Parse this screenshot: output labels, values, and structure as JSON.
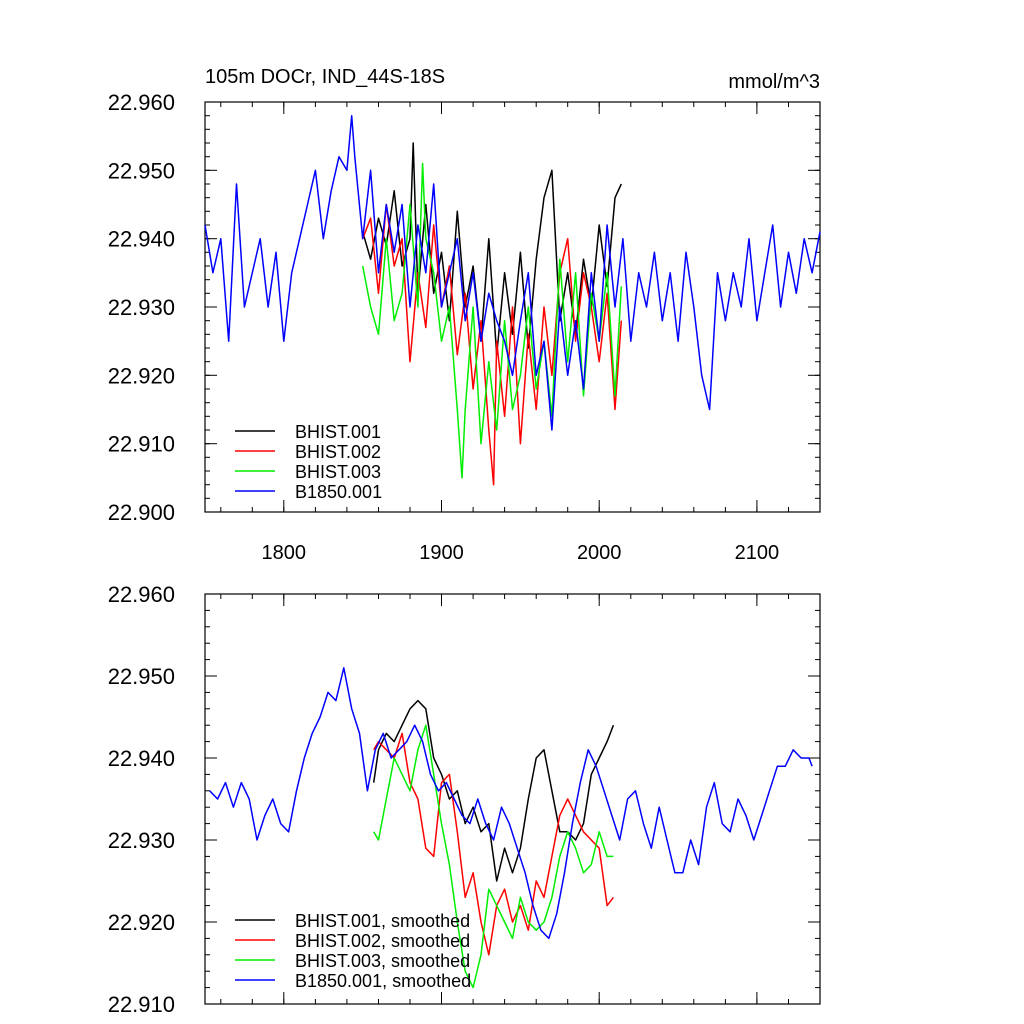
{
  "chart_data": [
    {
      "type": "line",
      "title": "105m DOCr, IND_44S-18S",
      "units": "mmol/m^3",
      "xlim": [
        1750,
        2140
      ],
      "ylim": [
        22.9,
        22.96
      ],
      "x_ticks": [
        1800,
        1900,
        2000,
        2100
      ],
      "x_tick_labels": [
        "1800",
        "1900",
        "2000",
        "2100"
      ],
      "y_ticks": [
        22.9,
        22.91,
        22.92,
        22.93,
        22.94,
        22.95,
        22.96
      ],
      "y_tick_labels": [
        "22.900",
        "22.910",
        "22.920",
        "22.930",
        "22.940",
        "22.950",
        "22.960"
      ],
      "legend": "bottom-left",
      "series": [
        {
          "name": "BHIST.001",
          "color": "#000000",
          "x": [
            1850,
            1855,
            1860,
            1865,
            1870,
            1875,
            1880,
            1882,
            1885,
            1890,
            1895,
            1900,
            1905,
            1910,
            1915,
            1920,
            1925,
            1930,
            1935,
            1940,
            1945,
            1950,
            1955,
            1960,
            1965,
            1970,
            1975,
            1980,
            1985,
            1990,
            1995,
            2000,
            2005,
            2010,
            2014
          ],
          "y": [
            22.941,
            22.937,
            22.943,
            22.939,
            22.947,
            22.936,
            22.94,
            22.954,
            22.932,
            22.945,
            22.932,
            22.938,
            22.928,
            22.944,
            22.93,
            22.936,
            22.925,
            22.94,
            22.923,
            22.935,
            22.926,
            22.938,
            22.924,
            22.937,
            22.946,
            22.95,
            22.928,
            22.935,
            22.926,
            22.937,
            22.93,
            22.942,
            22.933,
            22.946,
            22.948
          ]
        },
        {
          "name": "BHIST.002",
          "color": "#ff0000",
          "x": [
            1850,
            1855,
            1860,
            1865,
            1870,
            1875,
            1880,
            1885,
            1890,
            1895,
            1900,
            1905,
            1910,
            1915,
            1920,
            1925,
            1930,
            1933,
            1935,
            1940,
            1945,
            1950,
            1955,
            1960,
            1965,
            1970,
            1975,
            1980,
            1985,
            1990,
            1995,
            2000,
            2005,
            2010,
            2014
          ],
          "y": [
            22.94,
            22.943,
            22.932,
            22.945,
            22.936,
            22.94,
            22.922,
            22.935,
            22.927,
            22.942,
            22.93,
            22.936,
            22.923,
            22.932,
            22.918,
            22.928,
            22.912,
            22.904,
            22.925,
            22.914,
            22.93,
            22.91,
            22.926,
            22.915,
            22.93,
            22.92,
            22.935,
            22.94,
            22.925,
            22.935,
            22.93,
            22.922,
            22.932,
            22.915,
            22.928
          ]
        },
        {
          "name": "BHIST.003",
          "color": "#00ee00",
          "x": [
            1850,
            1855,
            1860,
            1865,
            1870,
            1875,
            1880,
            1885,
            1888,
            1890,
            1895,
            1900,
            1905,
            1910,
            1913,
            1915,
            1920,
            1925,
            1930,
            1935,
            1940,
            1945,
            1950,
            1955,
            1960,
            1965,
            1970,
            1975,
            1980,
            1985,
            1990,
            1995,
            2000,
            2005,
            2010,
            2014
          ],
          "y": [
            22.936,
            22.93,
            22.926,
            22.94,
            22.928,
            22.932,
            22.945,
            22.93,
            22.951,
            22.94,
            22.935,
            22.925,
            22.93,
            22.915,
            22.905,
            22.915,
            22.93,
            22.91,
            22.922,
            22.912,
            22.928,
            22.915,
            22.92,
            22.93,
            22.918,
            22.925,
            22.914,
            22.937,
            22.922,
            22.935,
            22.917,
            22.932,
            22.925,
            22.935,
            22.917,
            22.933
          ]
        },
        {
          "name": "B1850.001",
          "color": "#0000ff",
          "x": [
            1750,
            1755,
            1760,
            1765,
            1770,
            1775,
            1780,
            1785,
            1790,
            1795,
            1800,
            1805,
            1810,
            1815,
            1820,
            1825,
            1830,
            1835,
            1840,
            1843,
            1845,
            1850,
            1855,
            1860,
            1865,
            1870,
            1875,
            1880,
            1885,
            1890,
            1895,
            1900,
            1905,
            1910,
            1915,
            1920,
            1925,
            1930,
            1935,
            1940,
            1945,
            1950,
            1955,
            1960,
            1965,
            1970,
            1975,
            1980,
            1985,
            1990,
            1995,
            2000,
            2005,
            2010,
            2015,
            2020,
            2025,
            2030,
            2035,
            2040,
            2045,
            2050,
            2055,
            2060,
            2065,
            2070,
            2075,
            2080,
            2085,
            2090,
            2095,
            2100,
            2105,
            2110,
            2115,
            2120,
            2125,
            2130,
            2135,
            2140
          ],
          "y": [
            22.942,
            22.935,
            22.94,
            22.925,
            22.948,
            22.93,
            22.935,
            22.94,
            22.93,
            22.938,
            22.925,
            22.935,
            22.94,
            22.945,
            22.95,
            22.94,
            22.947,
            22.952,
            22.95,
            22.958,
            22.952,
            22.94,
            22.95,
            22.935,
            22.945,
            22.938,
            22.945,
            22.93,
            22.942,
            22.935,
            22.948,
            22.93,
            22.935,
            22.94,
            22.928,
            22.935,
            22.925,
            22.932,
            22.928,
            22.925,
            22.92,
            22.928,
            22.935,
            22.92,
            22.925,
            22.912,
            22.93,
            22.92,
            22.928,
            22.918,
            22.935,
            22.925,
            22.942,
            22.93,
            22.94,
            22.925,
            22.935,
            22.93,
            22.938,
            22.928,
            22.935,
            22.925,
            22.938,
            22.93,
            22.92,
            22.915,
            22.935,
            22.928,
            22.935,
            22.93,
            22.94,
            22.928,
            22.935,
            22.942,
            22.93,
            22.938,
            22.932,
            22.94,
            22.935,
            22.941
          ]
        }
      ]
    },
    {
      "type": "line",
      "title": "",
      "xlim": [
        1750,
        2140
      ],
      "ylim": [
        22.91,
        22.96
      ],
      "x_ticks": [
        1800,
        1900,
        2000,
        2100
      ],
      "y_ticks": [
        22.91,
        22.92,
        22.93,
        22.94,
        22.95,
        22.96
      ],
      "y_tick_labels": [
        "22.910",
        "22.920",
        "22.930",
        "22.940",
        "22.950",
        "22.960"
      ],
      "legend": "bottom-left",
      "series": [
        {
          "name": "BHIST.001, smoothed",
          "color": "#000000",
          "x": [
            1857,
            1860,
            1865,
            1870,
            1875,
            1880,
            1885,
            1890,
            1895,
            1900,
            1905,
            1910,
            1915,
            1920,
            1925,
            1930,
            1935,
            1940,
            1945,
            1950,
            1955,
            1960,
            1965,
            1970,
            1975,
            1980,
            1985,
            1990,
            1995,
            2000,
            2005,
            2009
          ],
          "y": [
            22.937,
            22.941,
            22.943,
            22.942,
            22.944,
            22.946,
            22.947,
            22.946,
            22.94,
            22.938,
            22.935,
            22.936,
            22.932,
            22.934,
            22.931,
            22.932,
            22.925,
            22.929,
            22.926,
            22.929,
            22.935,
            22.94,
            22.941,
            22.936,
            22.931,
            22.931,
            22.93,
            22.932,
            22.938,
            22.94,
            22.942,
            22.944
          ]
        },
        {
          "name": "BHIST.002, smoothed",
          "color": "#ff0000",
          "x": [
            1857,
            1860,
            1865,
            1870,
            1875,
            1880,
            1885,
            1890,
            1895,
            1900,
            1905,
            1910,
            1915,
            1920,
            1925,
            1930,
            1935,
            1940,
            1945,
            1950,
            1955,
            1960,
            1965,
            1970,
            1975,
            1980,
            1985,
            1990,
            1995,
            2000,
            2005,
            2009
          ],
          "y": [
            22.941,
            22.942,
            22.941,
            22.94,
            22.943,
            22.937,
            22.935,
            22.929,
            22.928,
            22.937,
            22.938,
            22.931,
            22.923,
            22.926,
            22.92,
            22.916,
            22.922,
            22.924,
            22.92,
            22.922,
            22.919,
            22.925,
            22.923,
            22.928,
            22.933,
            22.935,
            22.933,
            22.931,
            22.93,
            22.929,
            22.922,
            22.923
          ]
        },
        {
          "name": "BHIST.003, smoothed",
          "color": "#00ee00",
          "x": [
            1857,
            1860,
            1865,
            1870,
            1875,
            1880,
            1885,
            1890,
            1895,
            1900,
            1905,
            1910,
            1915,
            1920,
            1925,
            1930,
            1935,
            1940,
            1945,
            1950,
            1955,
            1960,
            1965,
            1970,
            1975,
            1980,
            1985,
            1990,
            1995,
            2000,
            2005,
            2009
          ],
          "y": [
            22.931,
            22.93,
            22.935,
            22.94,
            22.938,
            22.936,
            22.941,
            22.944,
            22.938,
            22.932,
            22.927,
            22.92,
            22.914,
            22.912,
            22.916,
            22.924,
            22.922,
            22.92,
            22.918,
            22.923,
            22.92,
            22.919,
            22.92,
            22.923,
            22.928,
            22.931,
            22.929,
            22.926,
            22.927,
            22.931,
            22.928,
            22.928
          ]
        },
        {
          "name": "B1850.001, smoothed",
          "color": "#0000ff",
          "x": [
            1753,
            1758,
            1763,
            1768,
            1773,
            1778,
            1783,
            1788,
            1793,
            1798,
            1803,
            1808,
            1813,
            1818,
            1823,
            1828,
            1833,
            1838,
            1843,
            1848,
            1853,
            1858,
            1863,
            1868,
            1873,
            1878,
            1883,
            1888,
            1893,
            1898,
            1903,
            1908,
            1913,
            1918,
            1923,
            1928,
            1933,
            1938,
            1943,
            1948,
            1953,
            1958,
            1963,
            1968,
            1973,
            1978,
            1983,
            1988,
            1993,
            1998,
            2003,
            2008,
            2013,
            2018,
            2023,
            2028,
            2033,
            2038,
            2043,
            2048,
            2053,
            2058,
            2063,
            2068,
            2073,
            2078,
            2083,
            2088,
            2093,
            2098,
            2103,
            2108,
            2113,
            2118,
            2123,
            2128,
            2133,
            2135
          ],
          "y": [
            22.936,
            22.935,
            22.937,
            22.934,
            22.937,
            22.935,
            22.93,
            22.933,
            22.935,
            22.932,
            22.931,
            22.936,
            22.94,
            22.943,
            22.945,
            22.948,
            22.947,
            22.951,
            22.946,
            22.943,
            22.936,
            22.941,
            22.943,
            22.94,
            22.941,
            22.942,
            22.944,
            22.942,
            22.938,
            22.936,
            22.937,
            22.935,
            22.933,
            22.932,
            22.935,
            22.932,
            22.93,
            22.934,
            22.932,
            22.929,
            22.926,
            22.922,
            22.919,
            22.918,
            22.921,
            22.926,
            22.932,
            22.937,
            22.941,
            22.939,
            22.936,
            22.933,
            22.93,
            22.935,
            22.936,
            22.932,
            22.929,
            22.934,
            22.93,
            22.926,
            22.926,
            22.93,
            22.927,
            22.934,
            22.937,
            22.932,
            22.931,
            22.935,
            22.933,
            22.93,
            22.933,
            22.936,
            22.939,
            22.939,
            22.941,
            22.94,
            22.94,
            22.939
          ]
        }
      ]
    }
  ]
}
